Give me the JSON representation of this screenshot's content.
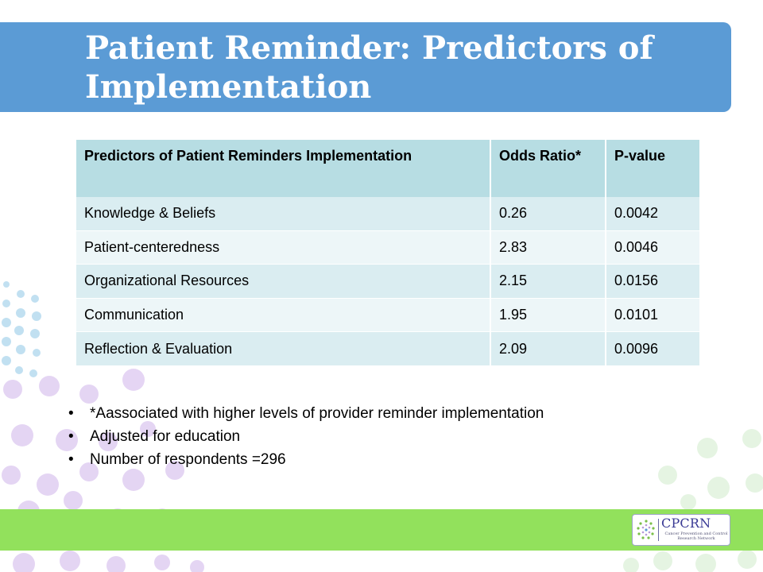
{
  "title": "Patient Reminder: Predictors of Implementation",
  "table": {
    "headers": [
      "Predictors of Patient Reminders Implementation",
      "Odds Ratio*",
      "P-value"
    ],
    "rows": [
      [
        "Knowledge & Beliefs",
        "0.26",
        "0.0042"
      ],
      [
        "Patient-centeredness",
        "2.83",
        "0.0046"
      ],
      [
        "Organizational Resources",
        "2.15",
        "0.0156"
      ],
      [
        "Communication",
        "1.95",
        "0.0101"
      ],
      [
        "Reflection & Evaluation",
        "2.09",
        "0.0096"
      ]
    ]
  },
  "notes": [
    "*Aassociated with higher levels of provider reminder implementation",
    "Adjusted for education",
    "Number of respondents =296"
  ],
  "bullet_glyph": "•",
  "logo": {
    "name": "CPCRN",
    "subtitle": "Cancer Prevention and Control Research Network"
  },
  "colors": {
    "title_bar": "#5b9bd5",
    "table_header": "#b7dde3",
    "row_odd": "#daedf1",
    "row_even": "#edf6f8",
    "bottom_bar": "#92e15c"
  }
}
